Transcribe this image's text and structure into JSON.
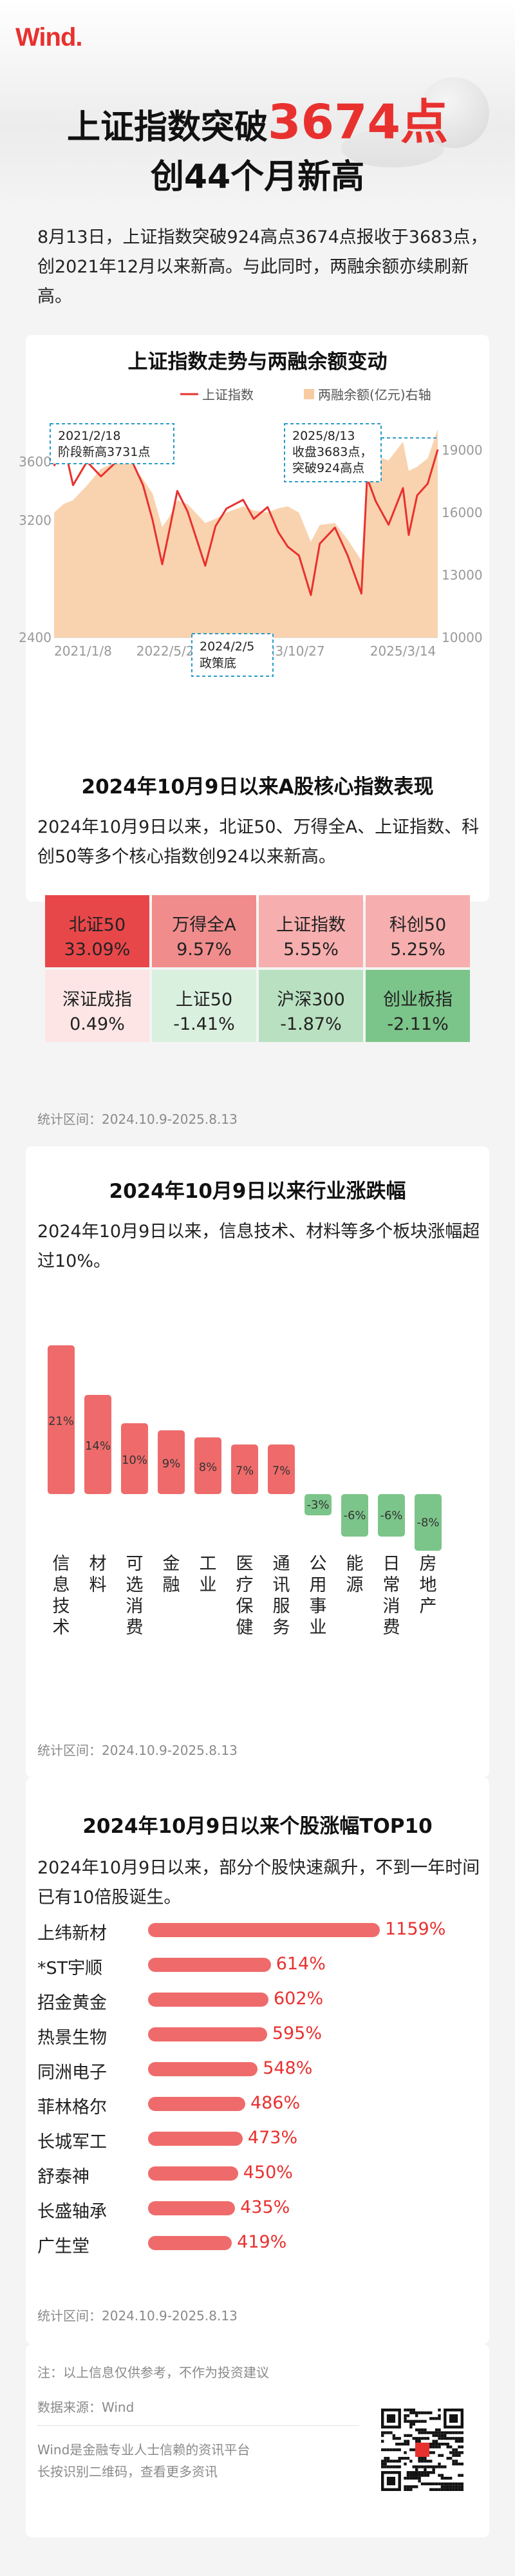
{
  "brand": "Wind",
  "header": {
    "title_part1": "上证指数突破",
    "title_highlight": "3674点",
    "title_line2": "创44个月新高"
  },
  "intro": "8月13日，上证指数突破924高点3674点报收于3683点，创2021年12月以来新高。与此同时，两融余额亦续刷新高。",
  "chart1": {
    "title": "上证指数走势与两融余额变动",
    "legend_line": "上证指数",
    "legend_area": "两融余额(亿元)右轴"
  },
  "chart_data": [
    {
      "type": "line",
      "title": "上证指数走势与两融余额变动",
      "x_ticks": [
        "2021/1/8",
        "2022/5/27",
        "2023/10/27",
        "2025/3/14"
      ],
      "y_left_ticks": [
        "2400",
        "3200",
        "3600"
      ],
      "y_right_ticks": [
        "10000",
        "13000",
        "16000",
        "19000"
      ],
      "ylim_left": [
        2400,
        3850
      ],
      "ylim_right": [
        10000,
        20200
      ],
      "series": [
        {
          "name": "上证指数",
          "axis": "left",
          "color": "#e8312f",
          "x": [
            "2021/1/8",
            "2021/2/18",
            "2021/4/1",
            "2021/6/1",
            "2021/8/1",
            "2021/10/1",
            "2021/12/1",
            "2022/2/1",
            "2022/3/15",
            "2022/4/26",
            "2022/5/27",
            "2022/7/1",
            "2022/8/15",
            "2022/10/31",
            "2022/12/15",
            "2023/2/1",
            "2023/4/15",
            "2023/5/31",
            "2023/7/31",
            "2023/9/15",
            "2023/10/27",
            "2023/12/15",
            "2024/2/5",
            "2024/3/15",
            "2024/5/20",
            "2024/7/15",
            "2024/9/13",
            "2024/10/8",
            "2024/11/15",
            "2025/1/10",
            "2025/3/14",
            "2025/4/8",
            "2025/5/15",
            "2025/6/30",
            "2025/8/13"
          ],
          "values": [
            3570,
            3731,
            3440,
            3600,
            3500,
            3590,
            3650,
            3440,
            3200,
            2900,
            3130,
            3400,
            3260,
            2890,
            3160,
            3280,
            3340,
            3210,
            3290,
            3120,
            3020,
            2960,
            2690,
            3040,
            3150,
            2960,
            2700,
            3490,
            3330,
            3170,
            3420,
            3100,
            3370,
            3450,
            3683
          ]
        },
        {
          "name": "两融余额(亿元)右轴",
          "axis": "right",
          "color": "#f8cba1",
          "x": [
            "2021/1/8",
            "2021/2/18",
            "2021/4/1",
            "2021/6/1",
            "2021/8/1",
            "2021/10/1",
            "2021/12/1",
            "2022/2/1",
            "2022/3/15",
            "2022/4/26",
            "2022/5/27",
            "2022/7/1",
            "2022/8/15",
            "2022/10/31",
            "2022/12/15",
            "2023/2/1",
            "2023/4/15",
            "2023/5/31",
            "2023/7/31",
            "2023/9/15",
            "2023/10/27",
            "2023/12/15",
            "2024/2/5",
            "2024/3/15",
            "2024/5/20",
            "2024/7/15",
            "2024/9/13",
            "2024/10/8",
            "2024/11/15",
            "2025/1/10",
            "2025/3/14",
            "2025/4/8",
            "2025/5/15",
            "2025/6/30",
            "2025/8/13"
          ],
          "values": [
            16000,
            16400,
            16600,
            17300,
            18100,
            18400,
            18500,
            17600,
            16900,
            15300,
            15800,
            16600,
            16400,
            15500,
            15700,
            16000,
            16300,
            16100,
            16000,
            16200,
            16300,
            16000,
            14600,
            15400,
            15500,
            14700,
            13700,
            17800,
            18700,
            18500,
            19400,
            18000,
            18200,
            18600,
            20000
          ]
        }
      ],
      "annotations": [
        "2021/2/18\n阶段新高3731点",
        "2025/8/13\n收盘3683点，\n突破924高点",
        "2024/2/5\n政策底"
      ]
    },
    {
      "type": "table",
      "title": "2024年10月9日以来A股核心指数表现",
      "categories": [
        "北证50",
        "万得全A",
        "上证指数",
        "科创50",
        "深证成指",
        "上证50",
        "沪深300",
        "创业板指"
      ],
      "values": [
        33.09,
        9.57,
        5.55,
        5.25,
        0.49,
        -1.41,
        -1.87,
        -2.11
      ]
    },
    {
      "type": "bar",
      "title": "2024年10月9日以来行业涨跌幅",
      "categories": [
        "信息技术",
        "材料",
        "可选消费",
        "金融",
        "工业",
        "医疗保健",
        "通讯服务",
        "公用事业",
        "能源",
        "日常消费",
        "房地产"
      ],
      "values": [
        21,
        14,
        10,
        9,
        8,
        7,
        7,
        -3,
        -6,
        -6,
        -8
      ]
    },
    {
      "type": "bar",
      "title": "2024年10月9日以来个股涨幅TOP10",
      "categories": [
        "上纬新材",
        "*ST宇顺",
        "招金黄金",
        "热景生物",
        "同洲电子",
        "菲林格尔",
        "长城军工",
        "舒泰神",
        "长盛轴承",
        "广生堂"
      ],
      "values": [
        1159,
        614,
        602,
        595,
        548,
        486,
        473,
        450,
        435,
        419
      ]
    }
  ],
  "annotations": {
    "a1_l1": "2021/2/18",
    "a1_l2": "阶段新高3731点",
    "a2_l1": "2025/8/13",
    "a2_l2": "收盘3683点，",
    "a2_l3": "突破924高点",
    "a3_l1": "2024/2/5",
    "a3_l2": "政策底"
  },
  "sec2": {
    "title": "2024年10月9日以来A股核心指数表现",
    "text": "2024年10月9日以来，北证50、万得全A、上证指数、科创50等多个核心指数创924以来新高。",
    "tiles": [
      {
        "name": "北证50",
        "value": "33.09%",
        "color": "#e8474a"
      },
      {
        "name": "万得全A",
        "value": "9.57%",
        "color": "#f18c8d"
      },
      {
        "name": "上证指数",
        "value": "5.55%",
        "color": "#f6aeae"
      },
      {
        "name": "科创50",
        "value": "5.25%",
        "color": "#f6aeae"
      },
      {
        "name": "深证成指",
        "value": "0.49%",
        "color": "#fde5e5"
      },
      {
        "name": "上证50",
        "value": "-1.41%",
        "color": "#daf0de"
      },
      {
        "name": "沪深300",
        "value": "-1.87%",
        "color": "#b9e1c1"
      },
      {
        "name": "创业板指",
        "value": "-2.11%",
        "color": "#7cc58a"
      }
    ],
    "note": "统计区间：2024.10.9-2025.8.13"
  },
  "sec3": {
    "title": "2024年10月9日以来行业涨跌幅",
    "text": "2024年10月9日以来，信息技术、材料等多个板块涨幅超过10%。",
    "labels": [
      "21%",
      "14%",
      "10%",
      "9%",
      "8%",
      "7%",
      "7%",
      "-3%",
      "-6%",
      "-6%",
      "-8%"
    ],
    "note": "统计区间：2024.10.9-2025.8.13"
  },
  "sec4": {
    "title": "2024年10月9日以来个股涨幅TOP10",
    "text": "2024年10月9日以来，部分个股快速飙升，不到一年时间已有10倍股诞生。",
    "labels": [
      "1159%",
      "614%",
      "602%",
      "595%",
      "548%",
      "486%",
      "473%",
      "450%",
      "435%",
      "419%"
    ],
    "note": "统计区间：2024.10.9-2025.8.13"
  },
  "footer": {
    "disclaimer": "注：以上信息仅供参考，不作为投资建议",
    "source": "数据来源：Wind",
    "tagline1": "Wind是金融专业人士信赖的资讯平台",
    "tagline2": "长按识别二维码，查看更多资讯"
  },
  "colors": {
    "accent": "#e8312f",
    "bar": "#ef6b6b",
    "bar_neg": "#7cc58a",
    "area": "#f8cba1",
    "annot": "#2a9bc8"
  }
}
